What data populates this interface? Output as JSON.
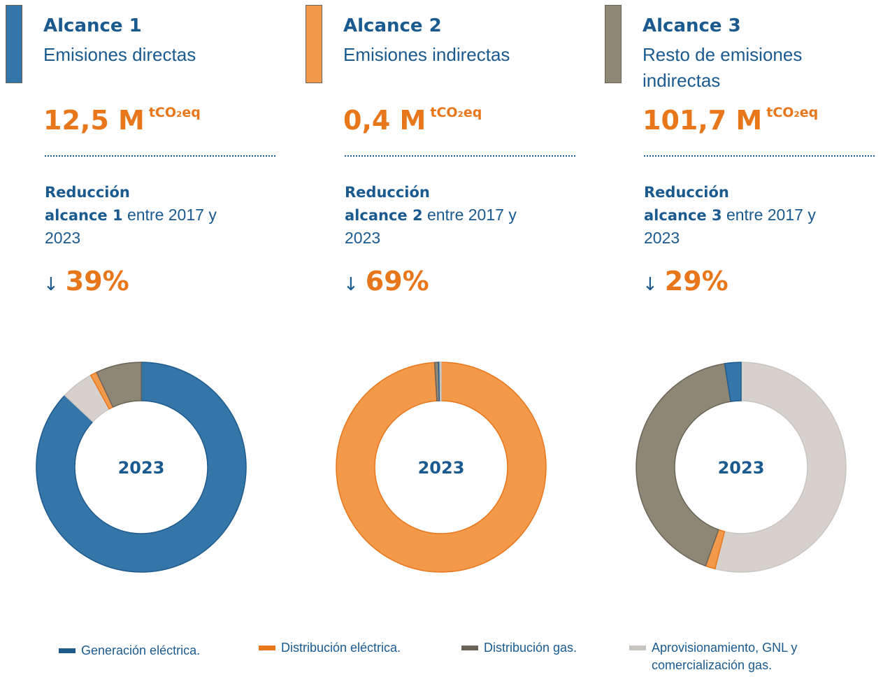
{
  "columns": [
    {
      "title": "Alcance 1",
      "subtitle": "Emisiones directas",
      "color": "#3576a9",
      "amount": "12,5 M",
      "unit": "tCO₂eq",
      "reduction": "Reducción",
      "scope": "alcance 1",
      "period": "entre 2017 y 2023",
      "arrow": "↓",
      "change": "39%"
    },
    {
      "title": "Alcance 2",
      "subtitle": "Emisiones indirectas",
      "color": "#f2994a",
      "amount": "0,4 M",
      "unit": "tCO₂eq",
      "reduction": "Reducción",
      "scope": "alcance 2",
      "period": "entre 2017 y 2023",
      "arrow": "↓",
      "change": "69%"
    },
    {
      "title": "Alcance 3",
      "subtitle": "Resto de emisiones indirectas",
      "color": "#8f8775",
      "amount": "101,7 M",
      "unit": "tCO₂eq",
      "reduction": "Reducción",
      "scope": "alcance 3",
      "period": "entre 2017 y 2023",
      "arrow": "↓",
      "change": "29%"
    }
  ],
  "chart_data": [
    {
      "type": "donut",
      "center_label": "2023",
      "values": [
        87,
        1,
        7,
        5
      ]
    },
    {
      "type": "donut",
      "center_label": "2023",
      "values": [
        0.2,
        99,
        0.6,
        0.2
      ]
    },
    {
      "type": "donut",
      "center_label": "2023",
      "values": [
        2.5,
        1.5,
        42,
        54
      ]
    }
  ],
  "legend": [
    {
      "name": "Generación eléctrica.",
      "color": "#3576a9"
    },
    {
      "name": "Distribución eléctrica.",
      "color": "#f2994a"
    },
    {
      "name": "Distribución gas.",
      "color": "#8f8775"
    },
    {
      "name": "Aprovisionamiento, GNL y comercialización gas.",
      "color": "#d6d1cc"
    }
  ]
}
